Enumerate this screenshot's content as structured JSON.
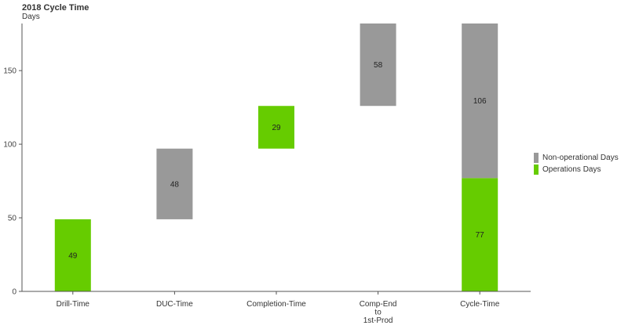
{
  "chart_data": {
    "type": "bar",
    "title": "2018 Cycle Time",
    "unit_label": "Days",
    "ylim": [
      0,
      182
    ],
    "yticks": [
      0,
      50,
      100,
      150
    ],
    "grid": false,
    "legend_position": "right",
    "categories": [
      {
        "label_lines": [
          "Drill-Time"
        ]
      },
      {
        "label_lines": [
          "DUC-Time"
        ]
      },
      {
        "label_lines": [
          "Completion-Time"
        ]
      },
      {
        "label_lines": [
          "Comp-End",
          "to",
          "1st-Prod"
        ]
      },
      {
        "label_lines": [
          "Cycle-Time"
        ]
      }
    ],
    "series": [
      {
        "name": "Non-operational Days",
        "color": "#999999"
      },
      {
        "name": "Operations Days",
        "color": "#66cc00"
      }
    ],
    "bars": [
      {
        "category": 0,
        "series": 1,
        "base": 0,
        "value": 49
      },
      {
        "category": 1,
        "series": 0,
        "base": 49,
        "value": 48
      },
      {
        "category": 2,
        "series": 1,
        "base": 97,
        "value": 29
      },
      {
        "category": 3,
        "series": 0,
        "base": 126,
        "value": 58
      },
      {
        "category": 4,
        "series": 1,
        "base": 0,
        "value": 77
      },
      {
        "category": 4,
        "series": 0,
        "base": 77,
        "value": 106
      }
    ]
  }
}
